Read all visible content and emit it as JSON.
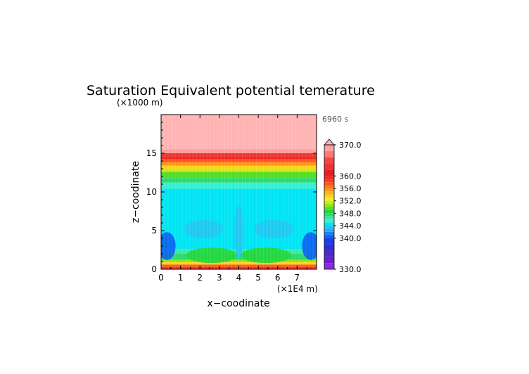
{
  "chart_data": {
    "type": "heatmap",
    "title": "Saturation Equivalent potential temerature",
    "time_label": "6960 s",
    "xlabel": "x−coodinate",
    "ylabel": "z−coodinate",
    "x_unit": "(×1E4 m)",
    "y_unit": "(×1000 m)",
    "xlim": [
      0,
      8
    ],
    "ylim": [
      0,
      20
    ],
    "x_ticks": [
      "0",
      "1",
      "2",
      "3",
      "4",
      "5",
      "6",
      "7"
    ],
    "y_ticks": [
      "0",
      "5",
      "10",
      "15"
    ],
    "colorbar": {
      "min": 330,
      "max": 370,
      "extend": "max",
      "tick_values": [
        330,
        340,
        344,
        348,
        352,
        356,
        360,
        370
      ],
      "tick_labels": [
        "330.0",
        "340.0",
        "344.0",
        "348.0",
        "352.0",
        "356.0",
        "360.0",
        "370.0"
      ],
      "levels": [
        {
          "from": 330,
          "to": 332,
          "color": "#8a2be2"
        },
        {
          "from": 332,
          "to": 334,
          "color": "#6a1fd0"
        },
        {
          "from": 334,
          "to": 336,
          "color": "#4b2ac8"
        },
        {
          "from": 336,
          "to": 338,
          "color": "#2d2dd8"
        },
        {
          "from": 338,
          "to": 340,
          "color": "#1a3fe6"
        },
        {
          "from": 340,
          "to": 341,
          "color": "#0a5ef0"
        },
        {
          "from": 341,
          "to": 342,
          "color": "#1e7ff5"
        },
        {
          "from": 342,
          "to": 343,
          "color": "#3aa2f5"
        },
        {
          "from": 343,
          "to": 344,
          "color": "#22c6f2"
        },
        {
          "from": 344,
          "to": 345,
          "color": "#00e4f4"
        },
        {
          "from": 345,
          "to": 346,
          "color": "#34f0d4"
        },
        {
          "from": 346,
          "to": 347,
          "color": "#3de6a8"
        },
        {
          "from": 347,
          "to": 348,
          "color": "#28dc6e"
        },
        {
          "from": 348,
          "to": 349,
          "color": "#22d63c"
        },
        {
          "from": 349,
          "to": 350,
          "color": "#56de22"
        },
        {
          "from": 350,
          "to": 351,
          "color": "#8fe61c"
        },
        {
          "from": 351,
          "to": 352,
          "color": "#c8ee1a"
        },
        {
          "from": 352,
          "to": 353,
          "color": "#f0ee1a"
        },
        {
          "from": 353,
          "to": 354,
          "color": "#ffd21a"
        },
        {
          "from": 354,
          "to": 355,
          "color": "#ffb41a"
        },
        {
          "from": 355,
          "to": 356,
          "color": "#ff961a"
        },
        {
          "from": 356,
          "to": 357,
          "color": "#ff781a"
        },
        {
          "from": 357,
          "to": 358,
          "color": "#ff5a1a"
        },
        {
          "from": 358,
          "to": 359,
          "color": "#ff3c1a"
        },
        {
          "from": 359,
          "to": 360,
          "color": "#f0281e"
        },
        {
          "from": 360,
          "to": 362,
          "color": "#e61e28"
        },
        {
          "from": 362,
          "to": 364,
          "color": "#f03232"
        },
        {
          "from": 364,
          "to": 366,
          "color": "#f54646"
        },
        {
          "from": 366,
          "to": 368,
          "color": "#ff7878"
        },
        {
          "from": 368,
          "to": 370,
          "color": "#ff9e9e"
        }
      ],
      "over_color": "#ffb4b4"
    },
    "bands": [
      {
        "z": [
          18.0,
          20.0
        ],
        "value": 371
      },
      {
        "z": [
          15.5,
          18.0
        ],
        "value": 370
      },
      {
        "z": [
          15.0,
          15.5
        ],
        "value": 368
      },
      {
        "z": [
          14.6,
          15.0
        ],
        "value": 362
      },
      {
        "z": [
          14.2,
          14.6
        ],
        "value": 359
      },
      {
        "z": [
          13.8,
          14.2
        ],
        "value": 357
      },
      {
        "z": [
          13.4,
          13.8
        ],
        "value": 355
      },
      {
        "z": [
          13.0,
          13.4
        ],
        "value": 353
      },
      {
        "z": [
          12.6,
          13.0
        ],
        "value": 351
      },
      {
        "z": [
          11.8,
          12.6
        ],
        "value": 349
      },
      {
        "z": [
          11.2,
          11.8
        ],
        "value": 347
      },
      {
        "z": [
          10.4,
          11.2
        ],
        "value": 345.5
      },
      {
        "z": [
          2.6,
          10.4
        ],
        "value": 344.5
      },
      {
        "z": [
          2.0,
          2.6
        ],
        "value": 346.5
      },
      {
        "z": [
          1.2,
          2.0
        ],
        "value": 347.5
      },
      {
        "z": [
          0.9,
          1.2
        ],
        "value": 350
      },
      {
        "z": [
          0.6,
          0.9
        ],
        "value": 353
      },
      {
        "z": [
          0.3,
          0.6
        ],
        "value": 357
      },
      {
        "z": [
          0.0,
          0.3
        ],
        "value": 362
      }
    ],
    "features": [
      {
        "kind": "blob",
        "x": 0.3,
        "z": 3.0,
        "rx": 0.45,
        "rz": 1.8,
        "value": 340
      },
      {
        "kind": "blob",
        "x": 7.7,
        "z": 3.0,
        "rx": 0.45,
        "rz": 1.8,
        "value": 340
      },
      {
        "kind": "blob",
        "x": 2.2,
        "z": 5.2,
        "rx": 1.0,
        "rz": 1.2,
        "value": 343
      },
      {
        "kind": "blob",
        "x": 5.8,
        "z": 5.2,
        "rx": 1.0,
        "rz": 1.2,
        "value": 343
      },
      {
        "kind": "blob",
        "x": 4.0,
        "z": 4.8,
        "rx": 0.25,
        "rz": 3.5,
        "value": 343
      },
      {
        "kind": "blob",
        "x": 2.6,
        "z": 1.8,
        "rx": 1.3,
        "rz": 1.0,
        "value": 348
      },
      {
        "kind": "blob",
        "x": 5.4,
        "z": 1.8,
        "rx": 1.3,
        "rz": 1.0,
        "value": 348
      }
    ]
  }
}
